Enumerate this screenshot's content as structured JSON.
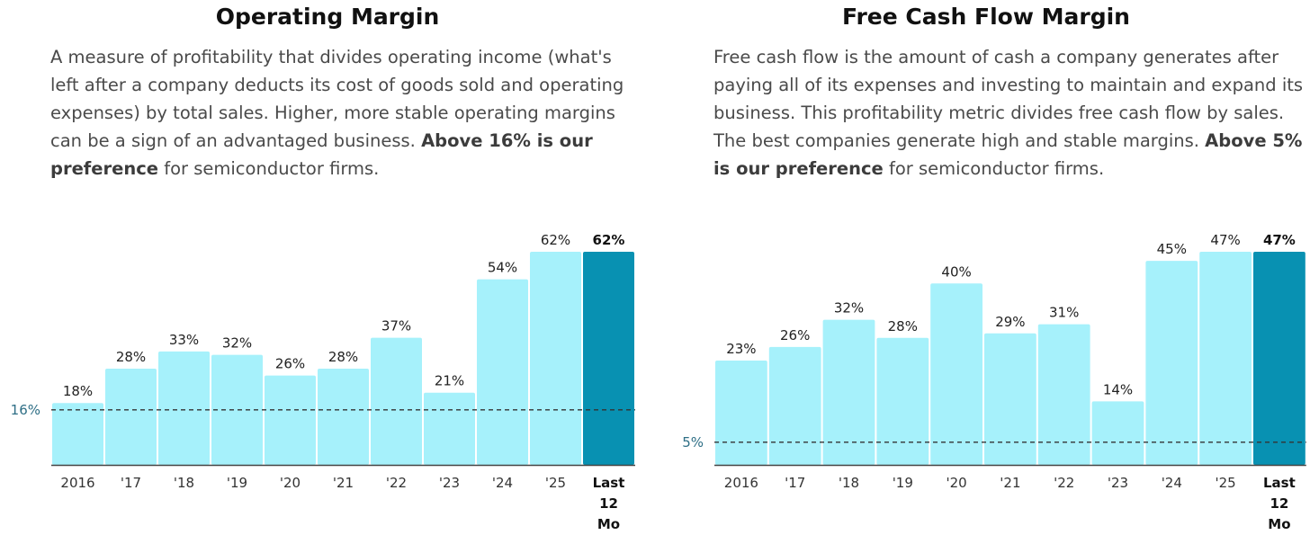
{
  "panels": [
    {
      "title": "Operating Margin",
      "desc_text": "A measure of profitability that divides operating income (what's left after a company deducts its cost of goods sold and operating expenses) by total sales. Higher, more stable operating margins can be a sign of an advantaged business. ",
      "desc_bold": "Above 16% is our preference",
      "desc_tail": " for semiconductor firms."
    },
    {
      "title": "Free Cash Flow Margin",
      "desc_text": "Free cash flow is the amount of cash a company generates after paying all of its expenses and investing to maintain and expand its business. This profitability metric divides free cash flow by sales. The best companies generate high and stable margins. ",
      "desc_bold": "Above 5% is our preference",
      "desc_tail": " for semiconductor firms."
    }
  ],
  "colors": {
    "bar": "#a6f1fb",
    "bar_highlight": "#0891b2",
    "threshold_label": "#2f6f86",
    "axis": "#444444"
  },
  "chart_data": [
    {
      "type": "bar",
      "title": "Operating Margin",
      "categories": [
        "2016",
        "'17",
        "'18",
        "'19",
        "'20",
        "'21",
        "'22",
        "'23",
        "'24",
        "'25",
        "Last 12 Mo"
      ],
      "values": [
        18,
        28,
        33,
        32,
        26,
        28,
        37,
        21,
        54,
        62,
        62
      ],
      "value_labels": [
        "18%",
        "28%",
        "33%",
        "32%",
        "26%",
        "28%",
        "37%",
        "21%",
        "54%",
        "62%",
        "62%"
      ],
      "highlight_index": 10,
      "threshold": 16,
      "threshold_label": "16%",
      "ylim": [
        0,
        62
      ]
    },
    {
      "type": "bar",
      "title": "Free Cash Flow Margin",
      "categories": [
        "2016",
        "'17",
        "'18",
        "'19",
        "'20",
        "'21",
        "'22",
        "'23",
        "'24",
        "'25",
        "Last 12 Mo"
      ],
      "values": [
        23,
        26,
        32,
        28,
        40,
        29,
        31,
        14,
        45,
        47,
        47
      ],
      "value_labels": [
        "23%",
        "26%",
        "32%",
        "28%",
        "40%",
        "29%",
        "31%",
        "14%",
        "45%",
        "47%",
        "47%"
      ],
      "highlight_index": 10,
      "threshold": 5,
      "threshold_label": "5%",
      "ylim": [
        0,
        47
      ]
    }
  ]
}
